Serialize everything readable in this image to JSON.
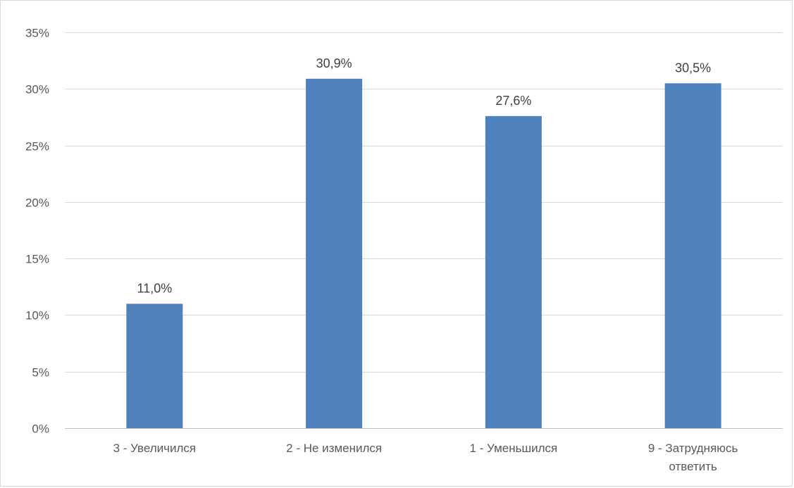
{
  "chart_data": {
    "type": "bar",
    "categories": [
      [
        "3 - Увеличился"
      ],
      [
        "2 - Не изменился"
      ],
      [
        "1 - Уменьшился"
      ],
      [
        "9 - Затрудняюсь",
        "ответить"
      ]
    ],
    "values": [
      11.0,
      30.9,
      27.6,
      30.5
    ],
    "data_labels": [
      "11,0%",
      "30,9%",
      "27,6%",
      "30,5%"
    ],
    "y_ticks": [
      0,
      5,
      10,
      15,
      20,
      25,
      30,
      35
    ],
    "y_tick_labels": [
      "0%",
      "5%",
      "10%",
      "15%",
      "20%",
      "25%",
      "30%",
      "35%"
    ],
    "ylim": [
      0,
      35
    ],
    "grid": true,
    "legend": "none",
    "bar_color": "#4f81bd",
    "title": "",
    "xlabel": "",
    "ylabel": ""
  }
}
